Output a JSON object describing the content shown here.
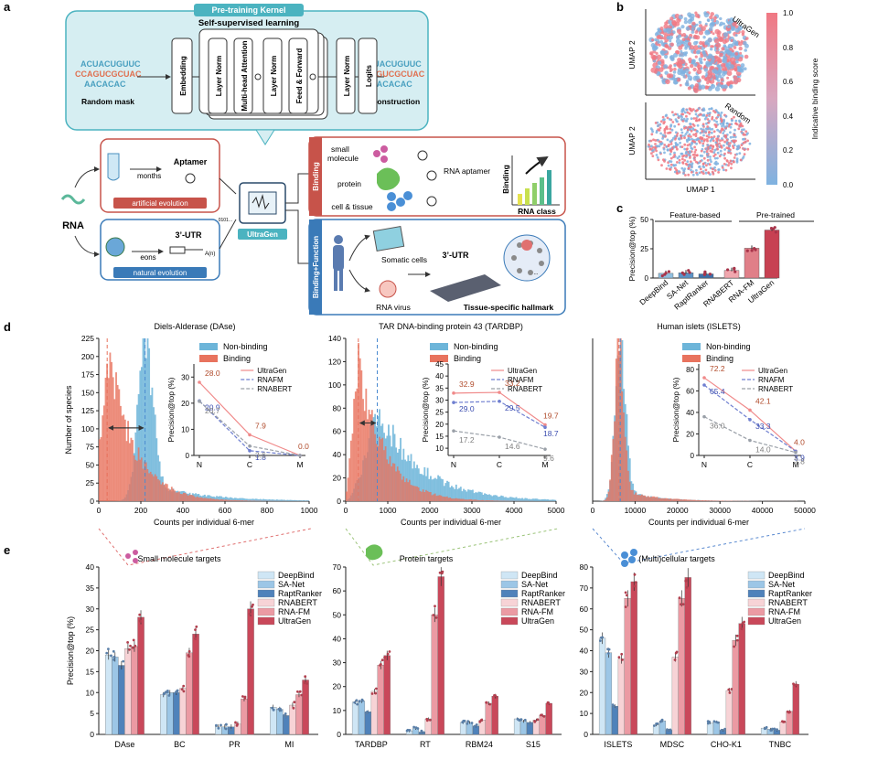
{
  "panel_labels": {
    "a": "a",
    "b": "b",
    "c": "c",
    "d": "d",
    "e": "e"
  },
  "panel_a": {
    "kernel_title": "Pre-training Kernel",
    "ssl_title": "Self-supervised learning",
    "masked_seq": [
      "ACUACUGUUC",
      "CCAGUCGCUAC",
      "AACACAC"
    ],
    "recon_seq": [
      "ACUACUGUUC",
      "CCAGUCGCUAC",
      "AACACAC"
    ],
    "random_mask": "Random mask",
    "reconstruction": "Reconstruction",
    "blocks": [
      "Embedding",
      "Layer Norm",
      "Multi-head Attention",
      "Layer Norm",
      "Feed & Forward",
      "Layer Norm",
      "Logits"
    ],
    "aptamer": "Aptamer",
    "months": "months",
    "artificial_evolution": "artificial evolution",
    "utr": "3’-UTR",
    "eons": "eons",
    "natural_evolution": "natural evolution",
    "polyA": "A(n)",
    "rna": "RNA",
    "bits": "0101...",
    "ultragen": "UltraGen",
    "binding_tab": "Binding",
    "small_molecule": "small\nmolecule",
    "protein": "protein",
    "cell_tissue": "cell & tissue",
    "rna_aptamer": "RNA aptamer",
    "binding_axis": "Binding",
    "rna_class": "RNA class",
    "bf_tab": "Binding+Function",
    "somatic": "Somatic cells",
    "rna_virus": "RNA virus",
    "utr2": "3’-UTR",
    "hallmark": "Tissue-specific hallmark",
    "ellipsis": "..."
  },
  "panel_b": {
    "ultragen_label": "UltraGen",
    "random_label": "Random",
    "ylabel": "UMAP 2",
    "xlabel": "UMAP 1",
    "colorbar_label": "Indicative binding score",
    "colorbar_ticks": [
      "1.0",
      "0.8",
      "0.6",
      "0.4",
      "0.2",
      "0.0"
    ],
    "low_color": "#7fb2e0",
    "high_color": "#f07883"
  },
  "panel_c": {
    "chart_data": {
      "type": "bar",
      "ylabel": "Precision@top (%)",
      "ylim": [
        0,
        50
      ],
      "yticks": [
        "0",
        "25",
        "50"
      ],
      "group_labels": [
        "Feature-based",
        "Pre-trained"
      ],
      "categories": [
        "DeepBind",
        "SA-Net",
        "RaptRanker",
        "RNABERT",
        "RNA-FM",
        "UltraGen"
      ],
      "values": [
        4,
        4.5,
        3.5,
        6.5,
        25.5,
        41
      ],
      "colors": [
        "#8fbfe0",
        "#5b93c7",
        "#3d6fa8",
        "#f0a7ae",
        "#e07f88",
        "#c74152"
      ]
    }
  },
  "panel_d": {
    "charts": [
      {
        "title": "Diels-Alderase (DAse)",
        "ylabel": "Number of species",
        "xlabel": "Counts per individual 6-mer",
        "xticks": [
          "0",
          "200",
          "400",
          "600",
          "800",
          "1000"
        ],
        "xmax": 1000,
        "yticks": [
          "0",
          "25",
          "50",
          "75",
          "100",
          "125",
          "150",
          "175",
          "200",
          "225"
        ],
        "ymax": 225,
        "binding_peak": 40,
        "nonbinding_peak": 220,
        "legend": [
          "Non-binding",
          "Binding"
        ],
        "inset": {
          "ylabel": "Precision@top (%)",
          "yticks": [
            "0",
            "10",
            "20",
            "30"
          ],
          "ymax": 35,
          "xticks": [
            "N",
            "C",
            "M"
          ],
          "legend": [
            "UltraGen",
            "RNAFM",
            "RNABERT"
          ],
          "series": [
            {
              "name": "UltraGen",
              "values": [
                28.0,
                7.9,
                0.0
              ],
              "labels": [
                "28.0",
                "7.9",
                "0.0"
              ]
            },
            {
              "name": "RNAFM",
              "values": [
                20.9,
                1.8,
                0.0
              ],
              "labels": [
                "20.9",
                "1.8",
                ""
              ]
            },
            {
              "name": "RNABERT",
              "values": [
                20.7,
                3.6,
                0.0
              ],
              "labels": [
                "20.7",
                "3.6",
                ""
              ]
            }
          ]
        }
      },
      {
        "title": "TAR DNA-binding protein 43 (TARDBP)",
        "ylabel": "",
        "xlabel": "Counts per individual 6-mer",
        "xticks": [
          "0",
          "1000",
          "2000",
          "3000",
          "4000",
          "5000"
        ],
        "xmax": 5000,
        "yticks": [
          "0",
          "20",
          "40",
          "60",
          "80",
          "100",
          "120",
          "140"
        ],
        "ymax": 140,
        "binding_peak": 300,
        "nonbinding_peak": 750,
        "legend": [
          "Non-binding",
          "Binding"
        ],
        "inset": {
          "ylabel": "Precision@top (%)",
          "yticks": [
            "10",
            "15",
            "20",
            "25",
            "30",
            "35",
            "40",
            "45"
          ],
          "ymax": 45,
          "ymin": 7,
          "xticks": [
            "N",
            "C",
            "M"
          ],
          "legend": [
            "UltraGen",
            "RNAFM",
            "RNABERT"
          ],
          "series": [
            {
              "name": "UltraGen",
              "values": [
                32.9,
                33.2,
                19.7
              ],
              "labels": [
                "32.9",
                "33.2",
                "19.7"
              ]
            },
            {
              "name": "RNAFM",
              "values": [
                29.0,
                29.5,
                18.7
              ],
              "labels": [
                "29.0",
                "29.5",
                "18.7"
              ]
            },
            {
              "name": "RNABERT",
              "values": [
                17.2,
                14.6,
                9.6
              ],
              "labels": [
                "17.2",
                "14.6",
                "9.6"
              ]
            }
          ]
        }
      },
      {
        "title": "Human islets (ISLETS)",
        "ylabel": "",
        "xlabel": "Counts per individual 6-mer",
        "xticks": [
          "0",
          "10000",
          "20000",
          "30000",
          "40000",
          "50000"
        ],
        "xmax": 50000,
        "yticks": [],
        "ymax": 140,
        "binding_peak": 6200,
        "nonbinding_peak": 6500,
        "legend": [
          "Non-binding",
          "Binding"
        ],
        "inset": {
          "ylabel": "Precision@top (%)",
          "yticks": [
            "0",
            "20",
            "40",
            "60",
            "80"
          ],
          "ymax": 85,
          "xticks": [
            "N",
            "C",
            "M"
          ],
          "legend": [
            "UltraGen",
            "RNAFM",
            "RNABERT"
          ],
          "series": [
            {
              "name": "UltraGen",
              "values": [
                72.2,
                42.1,
                4.0
              ],
              "labels": [
                "72.2",
                "42.1",
                "4.0"
              ]
            },
            {
              "name": "RNAFM",
              "values": [
                65.4,
                33.3,
                3.9
              ],
              "labels": [
                "65.4",
                "33.3",
                "3.9"
              ]
            },
            {
              "name": "RNABERT",
              "values": [
                36.0,
                14.0,
                2.8
              ],
              "labels": [
                "36.0",
                "14.0",
                "2.8"
              ]
            }
          ]
        }
      }
    ],
    "colors": {
      "binding": "#e8735e",
      "nonbinding": "#6db5d9",
      "ultragen": "#f08a8a",
      "rnafm": "#6f7fd0",
      "rnabert": "#9aa0a8",
      "ug_label": "#b04a2a",
      "fm_label": "#3b4db0",
      "bert_label": "#808080"
    }
  },
  "panel_e": {
    "chart_data": [
      {
        "type": "bar",
        "title": "Small molecule targets",
        "ylabel": "Precision@top (%)",
        "ylim": [
          0,
          40
        ],
        "yticks": [
          "0",
          "5",
          "10",
          "15",
          "20",
          "25",
          "30",
          "35",
          "40"
        ],
        "categories": [
          "DAse",
          "BC",
          "PR",
          "MI"
        ],
        "series": [
          {
            "name": "DeepBind",
            "values": [
              19.0,
              9.5,
              1.8,
              6.5
            ]
          },
          {
            "name": "SA-Net",
            "values": [
              18.5,
              10.0,
              1.8,
              6.0
            ]
          },
          {
            "name": "RaptRanker",
            "values": [
              16.5,
              10.0,
              1.8,
              4.5
            ]
          },
          {
            "name": "RNABERT",
            "values": [
              20.5,
              11.0,
              2.5,
              7.0
            ]
          },
          {
            "name": "RNA-FM",
            "values": [
              21.0,
              19.5,
              8.5,
              9.5
            ]
          },
          {
            "name": "UltraGen",
            "values": [
              28.0,
              24.0,
              30.0,
              13.0
            ]
          }
        ]
      },
      {
        "type": "bar",
        "title": "Protein targets",
        "ylabel": "",
        "ylim": [
          0,
          70
        ],
        "yticks": [
          "0",
          "10",
          "20",
          "30",
          "40",
          "50",
          "60",
          "70"
        ],
        "categories": [
          "TARDBP",
          "RT",
          "RBM24",
          "S15"
        ],
        "series": [
          {
            "name": "DeepBind",
            "values": [
              13.5,
              1.5,
              5.0,
              6.5
            ]
          },
          {
            "name": "SA-Net",
            "values": [
              14.0,
              2.5,
              5.0,
              5.5
            ]
          },
          {
            "name": "RaptRanker",
            "values": [
              9.5,
              1.0,
              3.5,
              5.0
            ]
          },
          {
            "name": "RNABERT",
            "values": [
              18.0,
              6.5,
              6.0,
              6.0
            ]
          },
          {
            "name": "RNA-FM",
            "values": [
              29.0,
              50.0,
              13.0,
              8.0
            ]
          },
          {
            "name": "UltraGen",
            "values": [
              33.0,
              66.0,
              16.0,
              13.0
            ]
          }
        ]
      },
      {
        "type": "bar",
        "title": "(Multi)cellular targets",
        "ylabel": "",
        "ylim": [
          0,
          80
        ],
        "yticks": [
          "0",
          "10",
          "20",
          "30",
          "40",
          "50",
          "60",
          "70",
          "80"
        ],
        "categories": [
          "ISLETS",
          "MDSC",
          "CHO-K1",
          "TNBC"
        ],
        "series": [
          {
            "name": "DeepBind",
            "values": [
              46.0,
              4.5,
              5.5,
              3.0
            ]
          },
          {
            "name": "SA-Net",
            "values": [
              39.0,
              6.5,
              6.0,
              2.5
            ]
          },
          {
            "name": "RaptRanker",
            "values": [
              13.5,
              2.0,
              2.0,
              2.0
            ]
          },
          {
            "name": "RNABERT",
            "values": [
              36.0,
              37.0,
              21.0,
              6.0
            ]
          },
          {
            "name": "RNA-FM",
            "values": [
              65.0,
              65.0,
              45.0,
              11.0
            ]
          },
          {
            "name": "UltraGen",
            "values": [
              73.0,
              75.0,
              53.0,
              24.0
            ]
          }
        ]
      }
    ],
    "legend": [
      "DeepBind",
      "SA-Net",
      "RaptRanker",
      "RNABERT",
      "RNA-FM",
      "UltraGen"
    ],
    "colors": [
      "#cfe6f5",
      "#9cc6e6",
      "#4f82ba",
      "#f7d3d6",
      "#eb9aa3",
      "#c9485a"
    ]
  }
}
